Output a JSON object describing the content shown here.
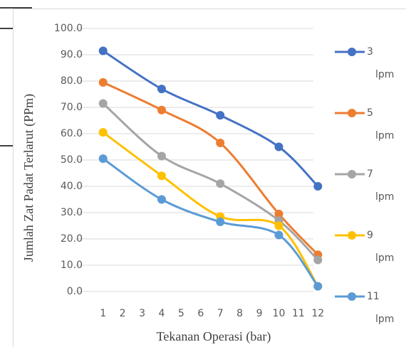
{
  "chart_data": {
    "type": "line",
    "x_label": "Tekanan Operasi (bar)",
    "y_label": "Jumlah Zat Padat Terlarut (PPm)",
    "x": [
      1,
      4,
      7,
      10,
      12
    ],
    "xlim": [
      0.5,
      12.5
    ],
    "xticks": [
      1,
      2,
      3,
      4,
      5,
      6,
      7,
      8,
      9,
      10,
      11,
      12
    ],
    "ylim": [
      0,
      100
    ],
    "yticks": [
      {
        "value": 0,
        "label": "0.0"
      },
      {
        "value": 10,
        "label": "10.0"
      },
      {
        "value": 20,
        "label": "20.0"
      },
      {
        "value": 30,
        "label": "30.0"
      },
      {
        "value": 40,
        "label": "40.0"
      },
      {
        "value": 50,
        "label": "50.0"
      },
      {
        "value": 60,
        "label": "60.0"
      },
      {
        "value": 70,
        "label": "70.0"
      },
      {
        "value": 80,
        "label": "80.0"
      },
      {
        "value": 90,
        "label": "90.0"
      },
      {
        "value": 100,
        "label": "100.0"
      }
    ],
    "grid": true,
    "legend": "right",
    "series": [
      {
        "name": "3 lpm",
        "color": "#4472c4",
        "values": [
          91.5,
          77,
          67,
          55,
          40
        ]
      },
      {
        "name": "5 lpm",
        "color": "#ed7d31",
        "values": [
          79.5,
          69,
          56.5,
          29.5,
          14
        ]
      },
      {
        "name": "7 lpm",
        "color": "#a5a5a5",
        "values": [
          71.5,
          51.5,
          41,
          27,
          12
        ]
      },
      {
        "name": "9 lpm",
        "color": "#ffc000",
        "values": [
          60.5,
          44,
          28.5,
          25,
          2
        ]
      },
      {
        "name": "11 lpm",
        "color": "#5b9bd5",
        "values": [
          50.5,
          35,
          26.5,
          21.5,
          2
        ]
      }
    ]
  }
}
